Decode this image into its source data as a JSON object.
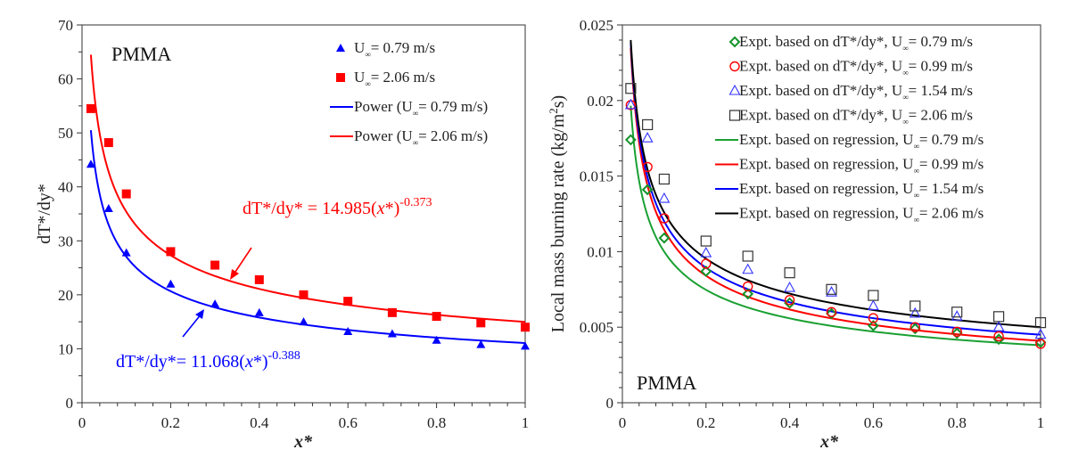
{
  "chart_data": [
    {
      "type": "scatter",
      "title": "",
      "annotation_label": "PMMA",
      "xlabel": "x*",
      "ylabel": "dT*/dy*",
      "xlim": [
        0,
        1
      ],
      "ylim": [
        0,
        70
      ],
      "xticks": [
        "0",
        "0.2",
        "0.4",
        "0.6",
        "0.8",
        "1"
      ],
      "xtick_values": [
        0,
        0.2,
        0.4,
        0.6,
        0.8,
        1
      ],
      "yticks": [
        "0",
        "10",
        "20",
        "30",
        "40",
        "50",
        "60",
        "70"
      ],
      "ytick_values": [
        0,
        10,
        20,
        30,
        40,
        50,
        60,
        70
      ],
      "grid": false,
      "legend_position": "top-right",
      "series": [
        {
          "name": "U∞ = 0.79 m/s",
          "legend_prefix": "U",
          "legend_suffix": "= 0.79 m/s",
          "kind": "markers",
          "marker": "filled-triangle",
          "color": "#0000ff",
          "x": [
            0.02,
            0.06,
            0.1,
            0.2,
            0.3,
            0.4,
            0.5,
            0.6,
            0.7,
            0.8,
            0.9,
            1.0
          ],
          "y": [
            44.2,
            36.0,
            27.8,
            22.0,
            18.3,
            16.7,
            15.0,
            13.2,
            12.8,
            11.6,
            10.8,
            10.5
          ]
        },
        {
          "name": "U∞ = 2.06 m/s",
          "legend_prefix": "U",
          "legend_suffix": "= 2.06 m/s",
          "kind": "markers",
          "marker": "filled-square",
          "color": "#ff0000",
          "x": [
            0.02,
            0.06,
            0.1,
            0.2,
            0.3,
            0.4,
            0.5,
            0.6,
            0.7,
            0.8,
            0.9,
            1.0
          ],
          "y": [
            54.5,
            48.2,
            38.7,
            28.0,
            25.5,
            22.8,
            20.0,
            18.8,
            16.7,
            16.0,
            14.8,
            14.0
          ]
        },
        {
          "name": "Power (U∞ = 0.79 m/s)",
          "legend_prefix": "Power (U",
          "legend_suffix": "= 0.79 m/s)",
          "kind": "power-fit",
          "color": "#0000ff",
          "coef": 11.068,
          "exponent": -0.388,
          "x_range": [
            0.02,
            1
          ]
        },
        {
          "name": "Power (U∞ = 2.06 m/s)",
          "legend_prefix": "Power (U",
          "legend_suffix": "= 2.06 m/s)",
          "kind": "power-fit",
          "color": "#ff0000",
          "coef": 14.985,
          "exponent": -0.373,
          "x_range": [
            0.02,
            1
          ]
        }
      ],
      "annotations": [
        {
          "name": "fit-equation-red",
          "prefix": "dT*/dy* = 14.985(",
          "var": "x",
          "mid": "*)",
          "exponent": "-0.373",
          "color": "#ff0000"
        },
        {
          "name": "fit-equation-blue",
          "prefix": "dT*/dy*= 11.068(",
          "var": "x",
          "mid": "*)",
          "exponent": "-0.388",
          "color": "#0000ff"
        }
      ]
    },
    {
      "type": "scatter",
      "title": "",
      "annotation_label": "PMMA",
      "xlabel": "x*",
      "ylabel": "Local mass burning rate (kg/m²s)",
      "ylabel_prefix": "Local mass burning rate (kg/m",
      "ylabel_sup": "2",
      "ylabel_suffix": "s)",
      "xlim": [
        0,
        1
      ],
      "ylim": [
        0,
        0.025
      ],
      "xticks": [
        "0",
        "0.2",
        "0.4",
        "0.6",
        "0.8",
        "1"
      ],
      "xtick_values": [
        0,
        0.2,
        0.4,
        0.6,
        0.8,
        1
      ],
      "yticks": [
        "0",
        "0.005",
        "0.01",
        "0.015",
        "0.02",
        "0.025"
      ],
      "ytick_values": [
        0,
        0.005,
        0.01,
        0.015,
        0.02,
        0.025
      ],
      "grid": false,
      "legend_position": "top-right",
      "series": [
        {
          "name": "Expt. based on dT*/dy*, U∞ = 0.79 m/s",
          "legend_prefix": "Expt. based on dT*/dy*, U",
          "legend_suffix": "= 0.79 m/s",
          "kind": "markers",
          "marker": "open-diamond",
          "color": "#14932a",
          "x": [
            0.02,
            0.06,
            0.1,
            0.2,
            0.3,
            0.4,
            0.5,
            0.6,
            0.7,
            0.8,
            0.9,
            1.0
          ],
          "y": [
            0.0174,
            0.0141,
            0.0109,
            0.0087,
            0.0072,
            0.0066,
            0.0059,
            0.0051,
            0.0049,
            0.0046,
            0.0042,
            0.004
          ]
        },
        {
          "name": "Expt. based on dT*/dy*, U∞ = 0.99 m/s",
          "legend_prefix": "Expt. based on dT*/dy*, U",
          "legend_suffix": "= 0.99 m/s",
          "kind": "markers",
          "marker": "open-circle",
          "color": "#ff0000",
          "x": [
            0.02,
            0.06,
            0.1,
            0.2,
            0.3,
            0.4,
            0.5,
            0.6,
            0.7,
            0.8,
            0.9,
            1.0
          ],
          "y": [
            0.0197,
            0.0156,
            0.0122,
            0.0092,
            0.0077,
            0.0068,
            0.006,
            0.0056,
            0.005,
            0.0047,
            0.0044,
            0.0039
          ]
        },
        {
          "name": "Expt. based on dT*/dy*, U∞ = 1.54 m/s",
          "legend_prefix": "Expt. based on dT*/dy*, U",
          "legend_suffix": "= 1.54 m/s",
          "kind": "markers",
          "marker": "open-triangle",
          "color": "#3333ff",
          "x": [
            0.02,
            0.06,
            0.1,
            0.2,
            0.3,
            0.4,
            0.5,
            0.6,
            0.7,
            0.8,
            0.9,
            1.0
          ],
          "y": [
            0.0197,
            0.0175,
            0.0135,
            0.0099,
            0.0088,
            0.0076,
            0.0073,
            0.0064,
            0.0059,
            0.0057,
            0.005,
            0.0045
          ]
        },
        {
          "name": "Expt. based on dT*/dy*, U∞ = 2.06 m/s",
          "legend_prefix": "Expt. based on dT*/dy*, U",
          "legend_suffix": "= 2.06 m/s",
          "kind": "markers",
          "marker": "open-square",
          "color": "#333333",
          "x": [
            0.02,
            0.06,
            0.1,
            0.2,
            0.3,
            0.4,
            0.5,
            0.6,
            0.7,
            0.8,
            0.9,
            1.0
          ],
          "y": [
            0.0208,
            0.0184,
            0.0148,
            0.0107,
            0.0097,
            0.0086,
            0.0075,
            0.0071,
            0.0064,
            0.006,
            0.0057,
            0.0053
          ]
        },
        {
          "name": "Expt. based on regression, U∞ = 0.79 m/s",
          "legend_prefix": "Expt. based on regression, U",
          "legend_suffix": "= 0.79 m/s",
          "kind": "power-curve",
          "color": "#1aa032",
          "coef": 0.0038,
          "exponent": -0.42,
          "x_range": [
            0.02,
            1
          ]
        },
        {
          "name": "Expt. based on regression, U∞ = 0.99 m/s",
          "legend_prefix": "Expt. based on regression, U",
          "legend_suffix": "= 0.99 m/s",
          "kind": "power-curve",
          "color": "#ff0000",
          "coef": 0.0041,
          "exponent": -0.446,
          "x_range": [
            0.02,
            1
          ]
        },
        {
          "name": "Expt. based on regression, U∞ = 1.54 m/s",
          "legend_prefix": "Expt. based on regression, U",
          "legend_suffix": "= 1.54 m/s",
          "kind": "power-curve",
          "color": "#0000ff",
          "coef": 0.0045,
          "exponent": -0.426,
          "x_range": [
            0.02,
            1
          ]
        },
        {
          "name": "Expt. based on regression, U∞ = 2.06 m/s",
          "legend_prefix": "Expt. based on regression, U",
          "legend_suffix": "= 2.06 m/s",
          "kind": "power-curve",
          "color": "#000000",
          "coef": 0.005,
          "exponent": -0.401,
          "x_range": [
            0.02,
            1
          ]
        }
      ]
    }
  ]
}
